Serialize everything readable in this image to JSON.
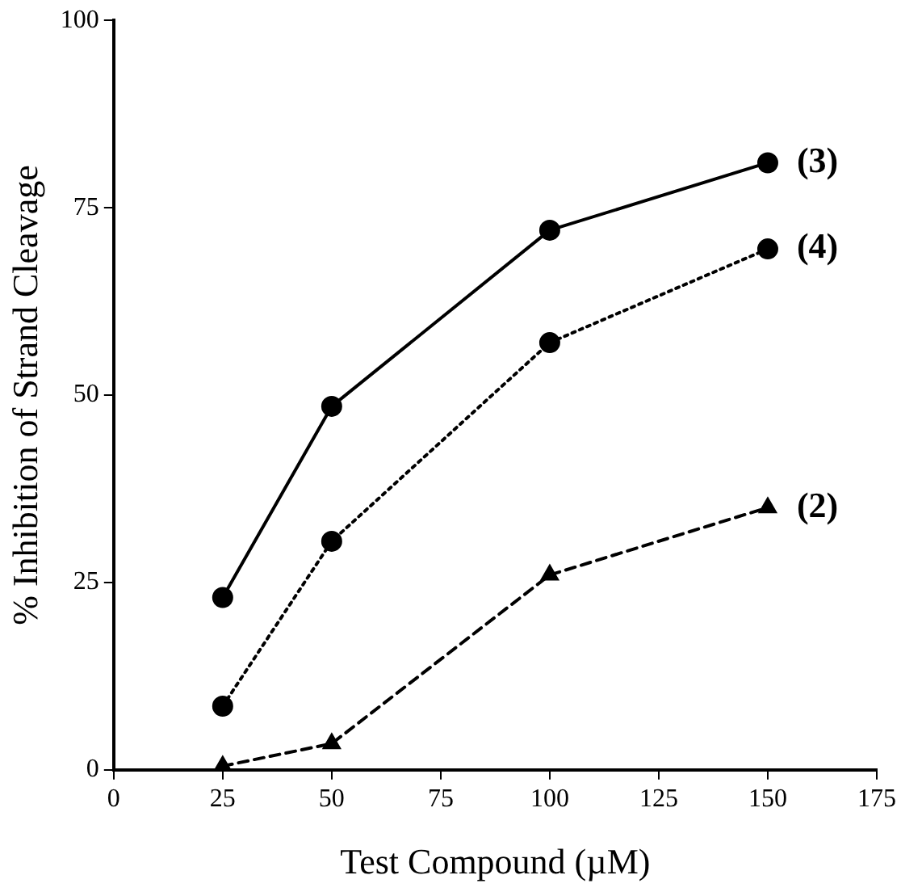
{
  "chart_data": {
    "type": "line",
    "xlabel": "Test Compound (µM)",
    "ylabel": "% Inhibition of Strand Cleavage",
    "series": [
      {
        "name": "(3)",
        "color": "#000000",
        "x": [
          25,
          50,
          100,
          150
        ],
        "values": [
          23,
          48.5,
          72,
          81
        ],
        "marker": "circle",
        "line_style": "solid"
      },
      {
        "name": "(4)",
        "color": "#000000",
        "x": [
          25,
          50,
          100,
          150
        ],
        "values": [
          8.5,
          30.5,
          57,
          69.5
        ],
        "marker": "circle",
        "line_style": "dotted"
      },
      {
        "name": "(2)",
        "color": "#000000",
        "x": [
          25,
          50,
          100,
          150
        ],
        "values": [
          0.5,
          3.5,
          26,
          35
        ],
        "marker": "triangle",
        "line_style": "dashed"
      }
    ],
    "xlim": [
      0,
      175
    ],
    "xticks": [
      0,
      25,
      50,
      75,
      100,
      125,
      150,
      175
    ],
    "ylim": [
      0,
      100
    ],
    "yticks": [
      0,
      25,
      50,
      75,
      100
    ],
    "grid": false,
    "legend": false
  }
}
